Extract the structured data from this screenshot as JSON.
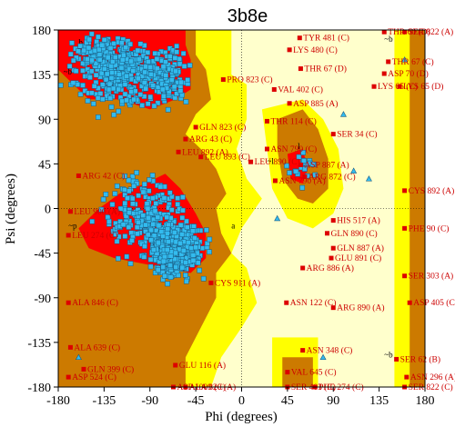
{
  "chart_data": {
    "type": "scatter",
    "title": "3b8e",
    "xlabel": "Phi (degrees)",
    "ylabel": "Psi (degrees)",
    "xlim": [
      -180,
      180
    ],
    "ylim": [
      -180,
      180
    ],
    "xticks": [
      -180,
      -135,
      -90,
      -45,
      0,
      45,
      90,
      135,
      180
    ],
    "yticks": [
      180,
      135,
      90,
      45,
      0,
      -45,
      -90,
      -135,
      -180
    ],
    "xtick_labels": [
      "-180",
      "-135",
      "-90",
      "-45",
      "0",
      "45",
      "90",
      "135",
      "180"
    ],
    "ytick_labels": [
      "180",
      "135",
      "90",
      "45",
      "0",
      "-45",
      "-90",
      "-135",
      "-180"
    ],
    "colors": {
      "core": "#ff0000",
      "allowed": "#cc7a00",
      "generous": "#ffff00",
      "outside": "#ffffcc",
      "points": "#33bbee",
      "outlier_label": "#cc0000"
    },
    "region_glyph_labels": [
      "~b",
      "b",
      "~b",
      "~l",
      "l",
      "~p",
      "p",
      "~a",
      "a",
      "~b"
    ],
    "outliers": [
      {
        "label": "THR 60 (D)",
        "phi": 140,
        "psi": 178
      },
      {
        "label": "SER 822 (A)",
        "phi": 160,
        "psi": 178
      },
      {
        "label": "TYR 481 (C)",
        "phi": 57,
        "psi": 172
      },
      {
        "label": "LYS 480 (C)",
        "phi": 47,
        "psi": 160
      },
      {
        "label": "THR 67 (C)",
        "phi": 144,
        "psi": 148
      },
      {
        "label": "THR 67 (D)",
        "phi": 58,
        "psi": 141
      },
      {
        "label": "ASP 70 (D)",
        "phi": 140,
        "psi": 136
      },
      {
        "label": "LYS 65 (C)",
        "phi": 130,
        "psi": 123
      },
      {
        "label": "LYS 65 (D)",
        "phi": 155,
        "psi": 123
      },
      {
        "label": "PRO 823 (C)",
        "phi": -18,
        "psi": 130
      },
      {
        "label": "VAL 402 (C)",
        "phi": 32,
        "psi": 120
      },
      {
        "label": "ASP 885 (A)",
        "phi": 47,
        "psi": 106
      },
      {
        "label": "THR 114 (C)",
        "phi": 25,
        "psi": 88
      },
      {
        "label": "SER 34 (C)",
        "phi": 90,
        "psi": 75
      },
      {
        "label": "GLN 823 (C)",
        "phi": -45,
        "psi": 82
      },
      {
        "label": "ARG 43 (C)",
        "phi": -55,
        "psi": 70
      },
      {
        "label": "LEU 892 (A)",
        "phi": -62,
        "psi": 57
      },
      {
        "label": "LEU 893 (C)",
        "phi": -40,
        "psi": 52
      },
      {
        "label": "ASN 790 (C)",
        "phi": 25,
        "psi": 60
      },
      {
        "label": "ASN 790 (A)",
        "phi": 33,
        "psi": 28
      },
      {
        "label": "LEU 890 (C)",
        "phi": 9,
        "psi": 47
      },
      {
        "label": "ASP 887 (A)",
        "phi": 58,
        "psi": 44
      },
      {
        "label": "ARG 872 (C)",
        "phi": 62,
        "psi": 32
      },
      {
        "label": "ARG 42 (C)",
        "phi": -160,
        "psi": 33
      },
      {
        "label": "LEU 900 (A)",
        "phi": -168,
        "psi": -3
      },
      {
        "label": "CYS 892 (A)",
        "phi": 160,
        "psi": 18
      },
      {
        "label": "HIS 517 (A)",
        "phi": 90,
        "psi": -12
      },
      {
        "label": "GLN 890 (C)",
        "phi": 84,
        "psi": -25
      },
      {
        "label": "GLN 887 (A)",
        "phi": 90,
        "psi": -40
      },
      {
        "label": "GLU 891 (C)",
        "phi": 88,
        "psi": -50
      },
      {
        "label": "LEU 274 (C)",
        "phi": -170,
        "psi": -27
      },
      {
        "label": "PHE 90 (C)",
        "phi": 160,
        "psi": -20
      },
      {
        "label": "ARG 886 (A)",
        "phi": 60,
        "psi": -60
      },
      {
        "label": "CYS 911 (A)",
        "phi": -30,
        "psi": -75
      },
      {
        "label": "SER 303 (A)",
        "phi": 160,
        "psi": -68
      },
      {
        "label": "ASN 122 (C)",
        "phi": 44,
        "psi": -95
      },
      {
        "label": "ALA 846 (C)",
        "phi": -170,
        "psi": -95
      },
      {
        "label": "ASP 405 (C)",
        "phi": 165,
        "psi": -95
      },
      {
        "label": "ARG 890 (A)",
        "phi": 90,
        "psi": -100
      },
      {
        "label": "ALA 639 (C)",
        "phi": -168,
        "psi": -140
      },
      {
        "label": "ASN 348 (C)",
        "phi": 60,
        "psi": -143
      },
      {
        "label": "SER 62 (B)",
        "phi": 152,
        "psi": -152
      },
      {
        "label": "GLN 399 (C)",
        "phi": -155,
        "psi": -162
      },
      {
        "label": "ASP 524 (C)",
        "phi": -170,
        "psi": -170
      },
      {
        "label": "VAL 645 (C)",
        "phi": 45,
        "psi": -165
      },
      {
        "label": "ASN 296 (A)",
        "phi": 162,
        "psi": -170
      },
      {
        "label": "ASP 1009 (C)",
        "phi": -67,
        "psi": -180
      },
      {
        "label": "GLU 116 (A)",
        "phi": -65,
        "psi": -158
      },
      {
        "label": "ALA 820 (A)",
        "phi": -55,
        "psi": -195
      },
      {
        "label": "SER 403 (C)",
        "phi": 45,
        "psi": -200
      },
      {
        "label": "PHE 274 (C)",
        "phi": 72,
        "psi": -200
      },
      {
        "label": "SER 822 (C)",
        "phi": 160,
        "psi": -200
      }
    ]
  }
}
